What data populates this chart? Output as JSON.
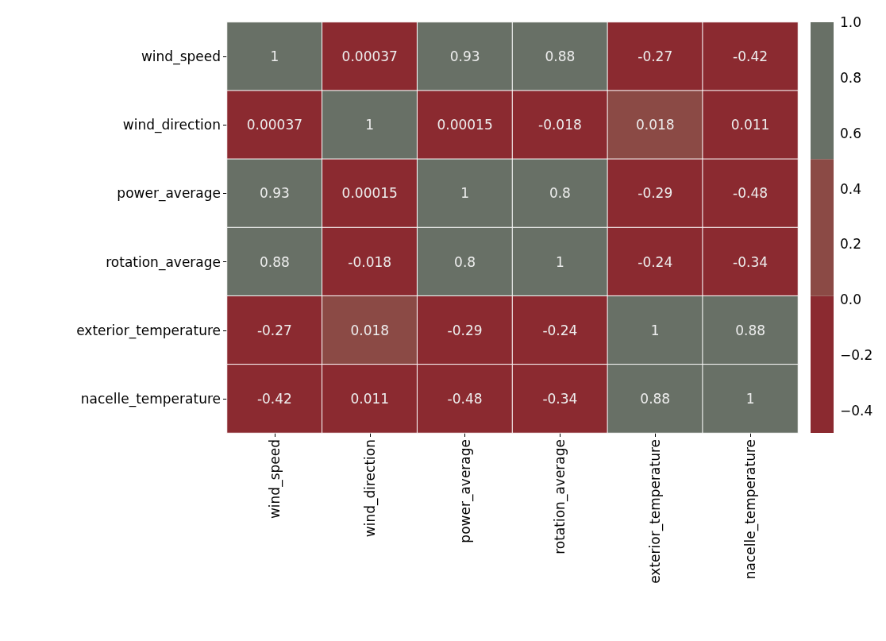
{
  "chart_data": {
    "type": "heatmap",
    "categories": [
      "wind_speed",
      "wind_direction",
      "power_average",
      "rotation_average",
      "exterior_temperature",
      "nacelle_temperature"
    ],
    "y_categories": [
      "wind_speed",
      "wind_direction",
      "power_average",
      "rotation_average",
      "exterior_temperature",
      "nacelle_temperature"
    ],
    "cells": [
      [
        1,
        0.00037,
        0.93,
        0.88,
        -0.27,
        -0.42
      ],
      [
        0.00037,
        1,
        0.00015,
        -0.018,
        0.018,
        0.011
      ],
      [
        0.93,
        0.00015,
        1,
        0.8,
        -0.29,
        -0.48
      ],
      [
        0.88,
        -0.018,
        0.8,
        1,
        -0.24,
        -0.34
      ],
      [
        -0.27,
        0.018,
        -0.29,
        -0.24,
        1,
        0.88
      ],
      [
        -0.42,
        0.011,
        -0.48,
        -0.34,
        0.88,
        1
      ]
    ],
    "data_labels": true,
    "colors": [
      "#8b2a30",
      "#8b4a45",
      "#687066"
    ],
    "clim": [
      -0.48,
      1
    ],
    "cticks": [
      {
        "value": -0.4,
        "label": "−0.4"
      },
      {
        "value": -0.2,
        "label": "−0.2"
      },
      {
        "value": 0,
        "label": "0.0"
      },
      {
        "value": 0.2,
        "label": "0.2"
      },
      {
        "value": 0.4,
        "label": "0.4"
      },
      {
        "value": 0.6,
        "label": "0.6"
      },
      {
        "value": 0.8,
        "label": "0.8"
      },
      {
        "value": 1,
        "label": "1.0"
      }
    ]
  }
}
